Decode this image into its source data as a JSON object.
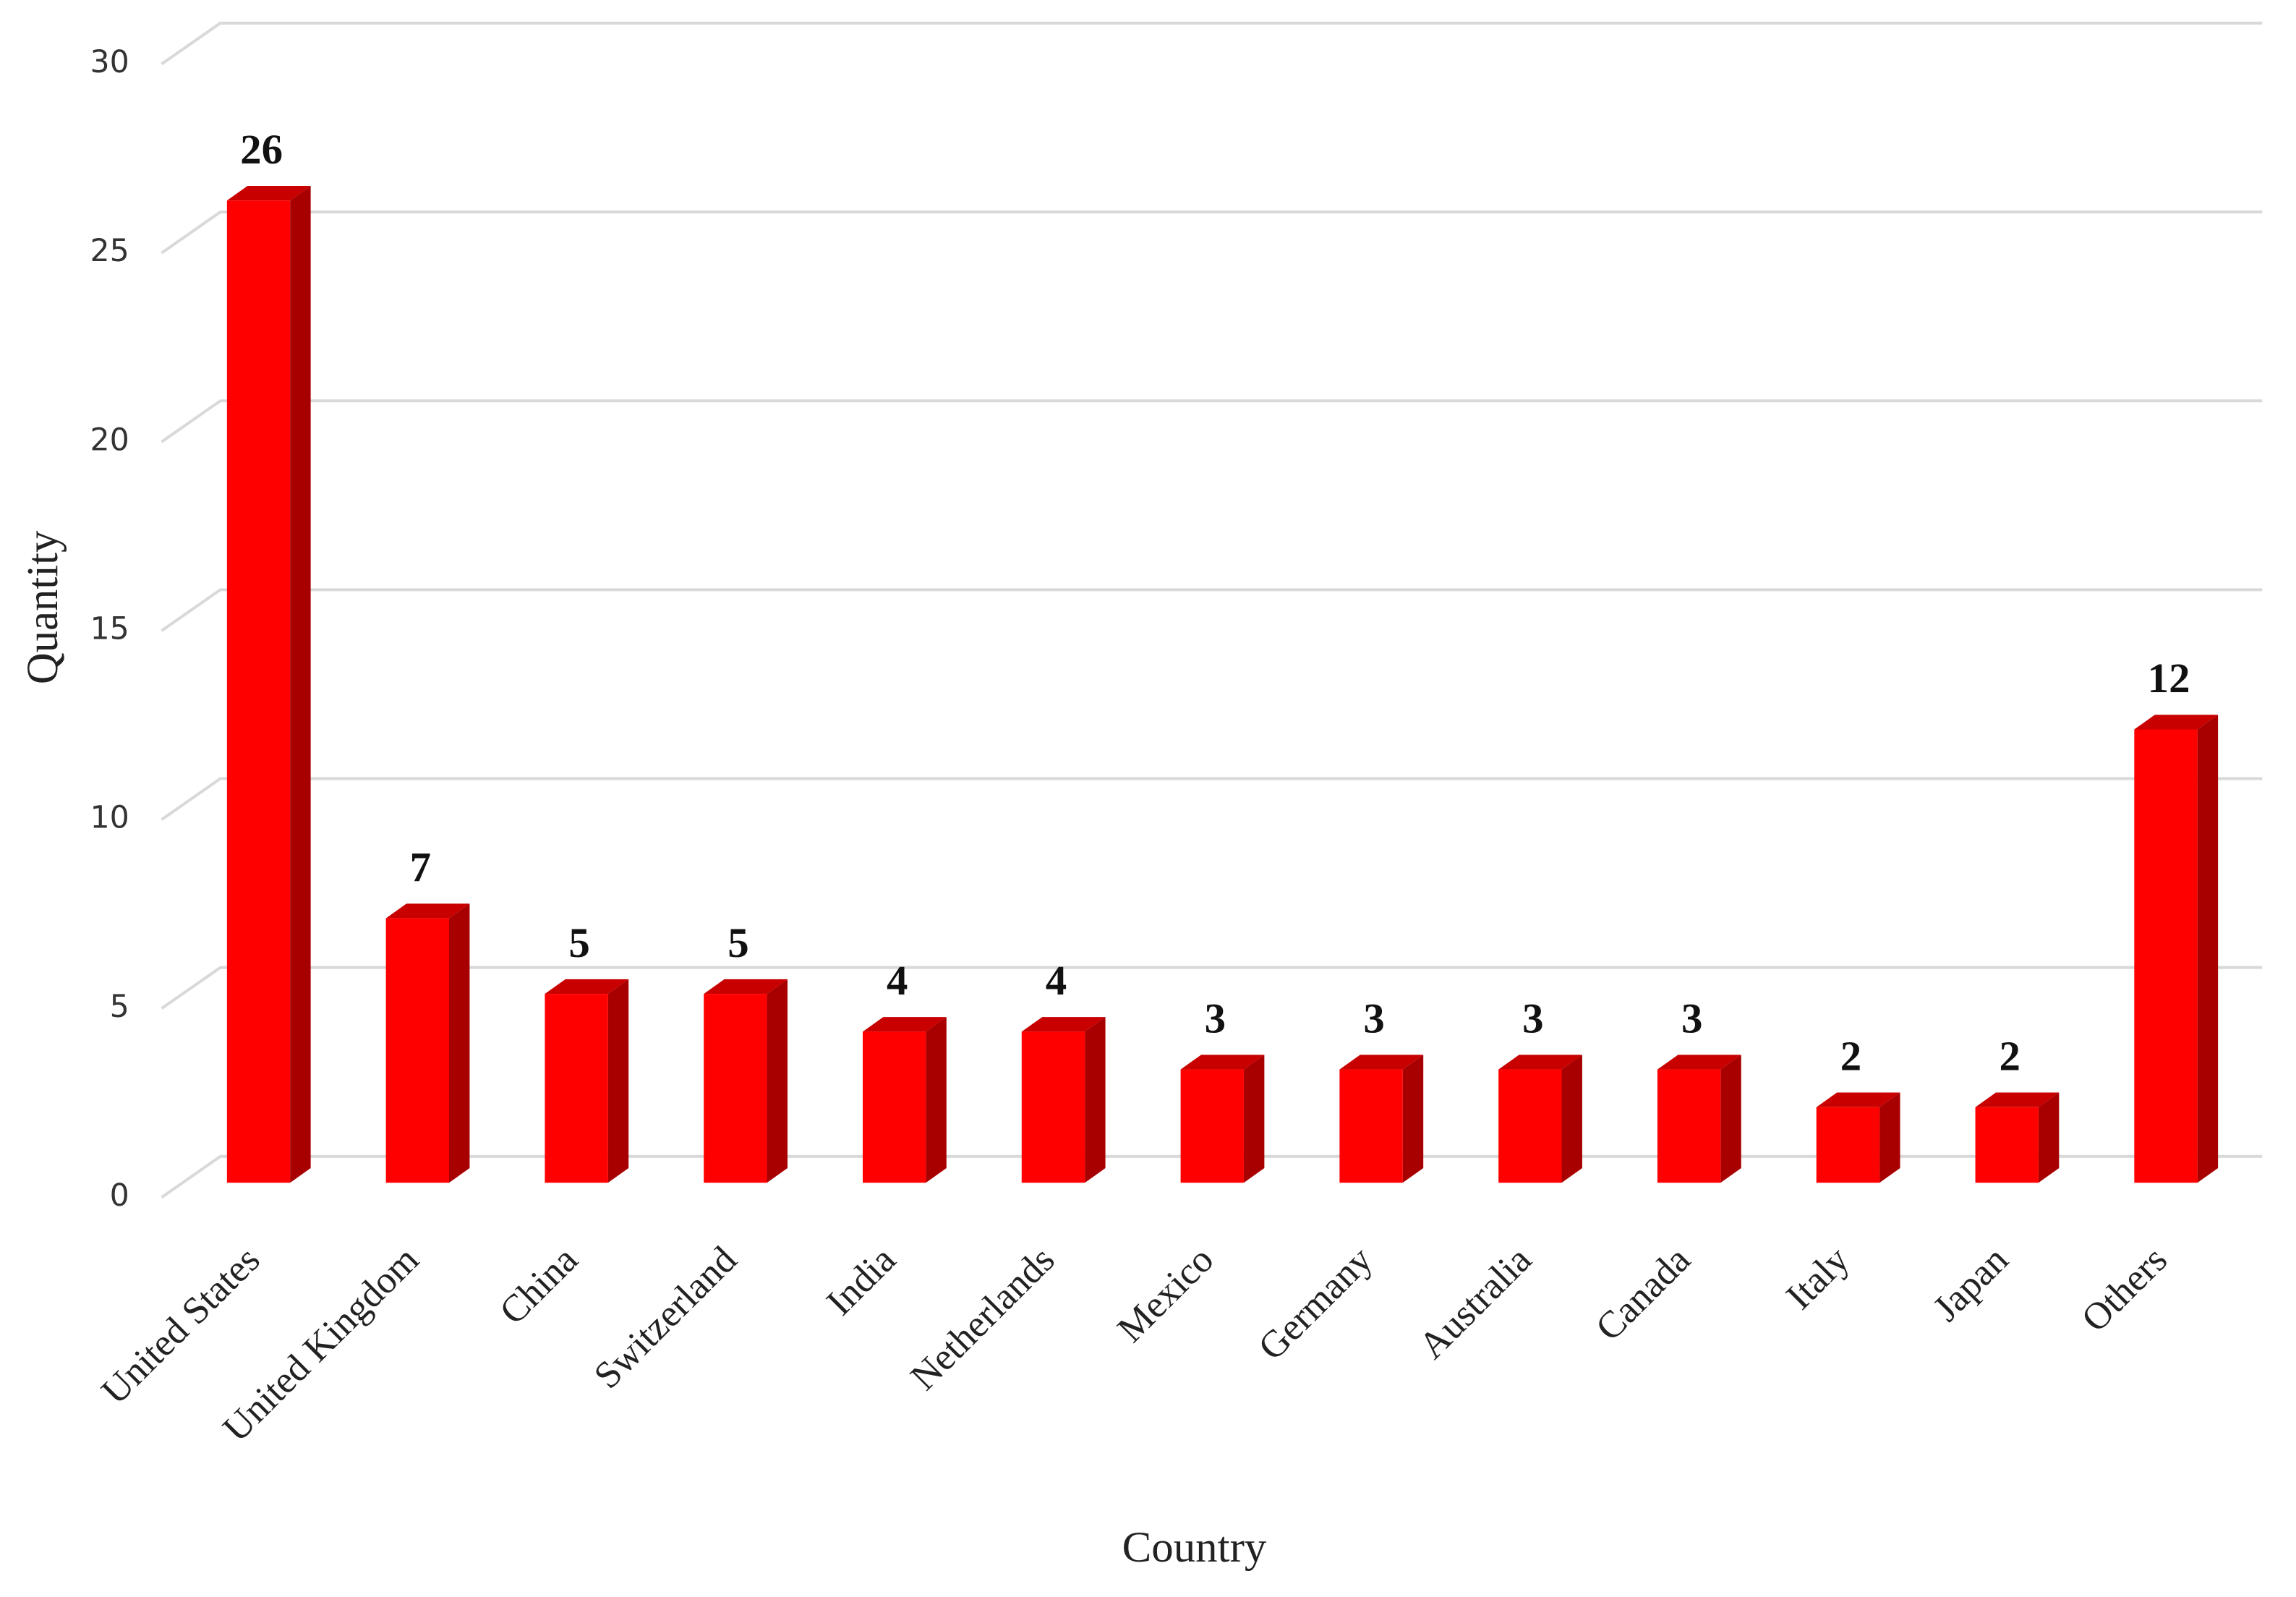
{
  "chart_data": {
    "type": "bar3d",
    "x_label": "Country",
    "y_label": "Quantity",
    "categories": [
      "United States",
      "United Kingdom",
      "China",
      "Switzerland",
      "India",
      "Netherlands",
      "Mexico",
      "Germany",
      "Australia",
      "Canada",
      "Italy",
      "Japan",
      "Others"
    ],
    "values": [
      26,
      7,
      5,
      5,
      4,
      4,
      3,
      3,
      3,
      3,
      2,
      2,
      12
    ],
    "color": "#ff0000",
    "ylim": [
      0,
      30
    ],
    "yticks": [
      0,
      5,
      10,
      15,
      20,
      25,
      30
    ],
    "grid": true
  }
}
